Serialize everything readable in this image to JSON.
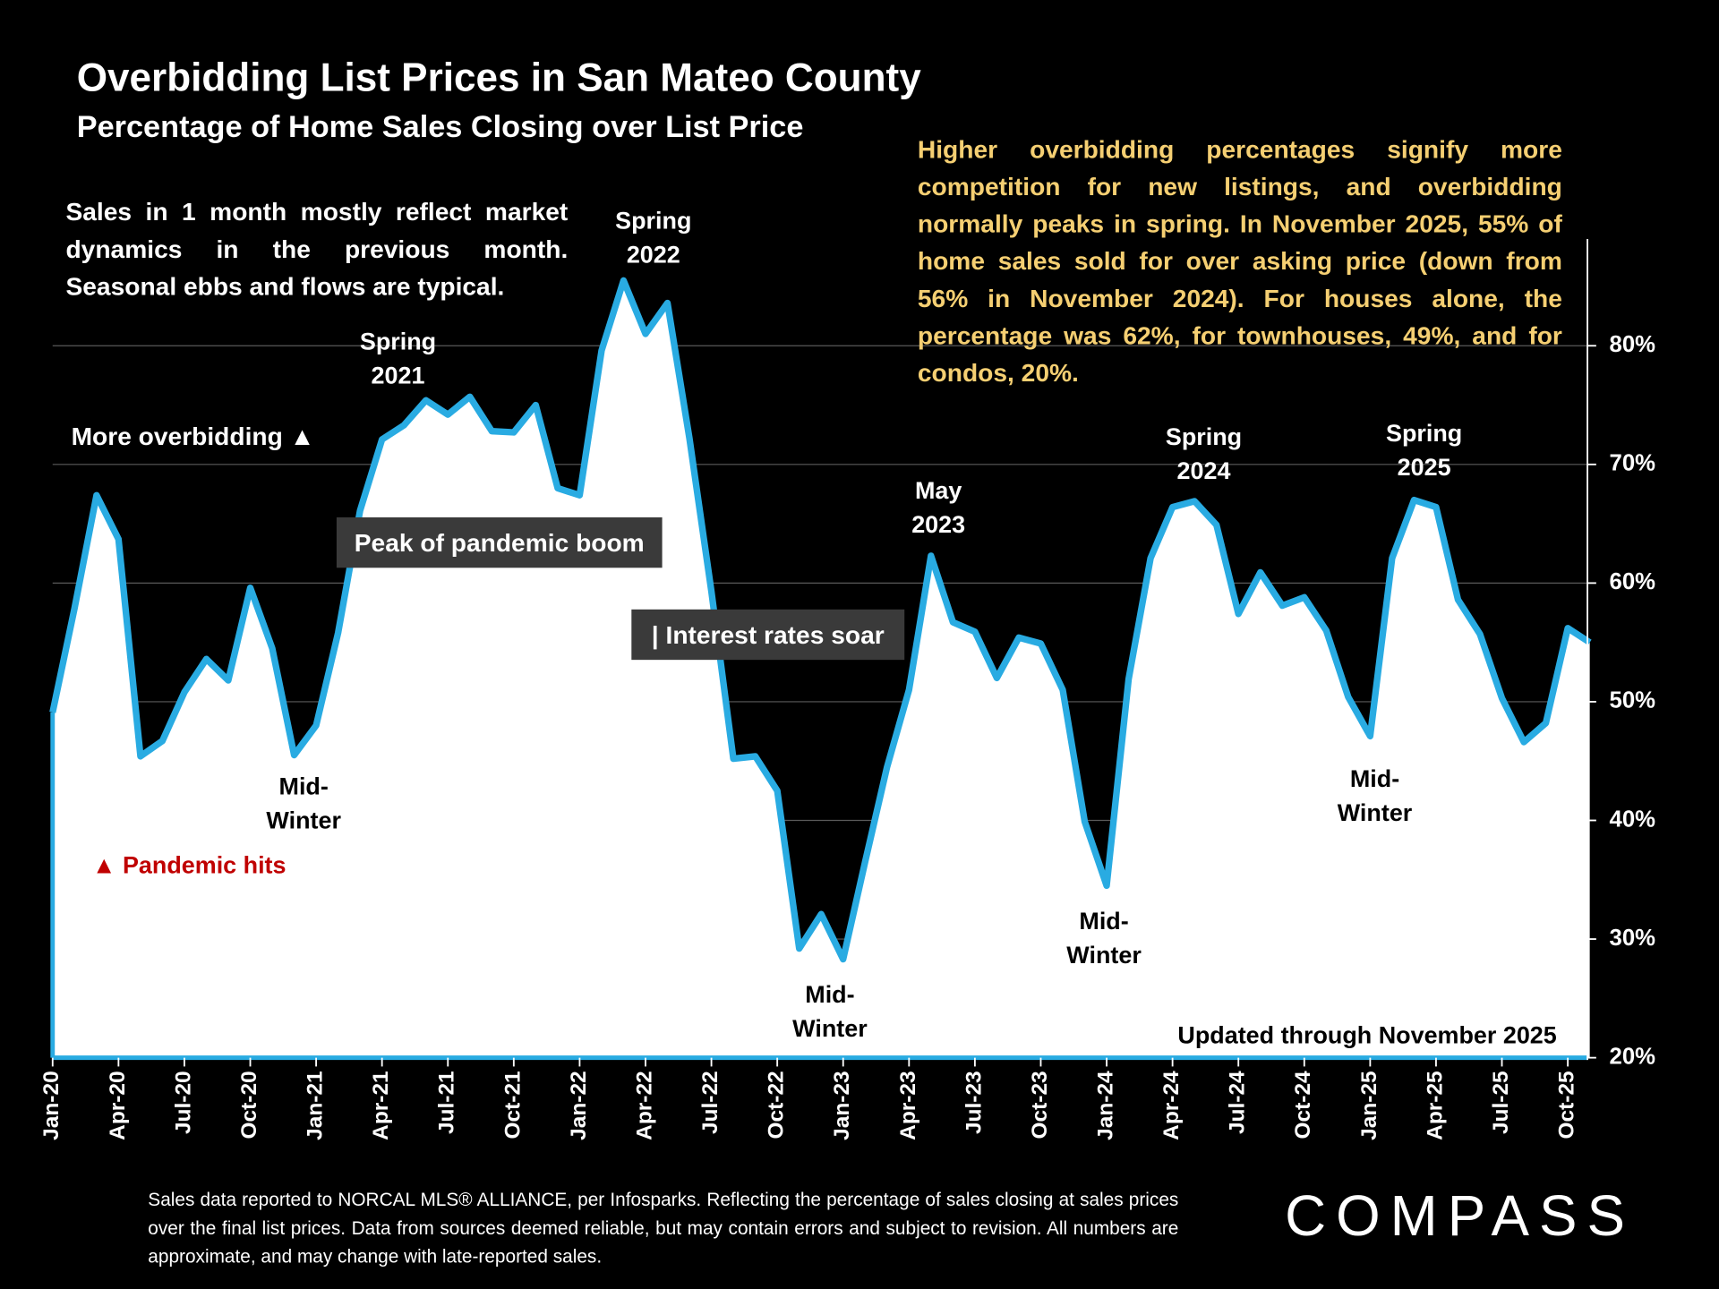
{
  "title": "Overbidding List Prices in San Mateo County",
  "subtitle": "Percentage of Home Sales Closing over List Price",
  "note": "Sales in 1 month mostly reflect market dynamics in the previous month. Seasonal ebbs and flows are typical.",
  "insight": "Higher overbidding percentages signify more competition for new listings, and overbidding normally peaks in spring. In November 2025, 55% of home sales sold for over asking price (down from 56% in November 2024). For houses alone, the percentage was 62%, for townhouses, 49%, and for condos, 20%.",
  "footer": "Sales data reported to NORCAL MLS® ALLIANCE, per Infosparks. Reflecting the percentage of sales closing at sales prices over the final list prices. Data from sources deemed reliable, but may contain errors and subject to revision. All numbers are approximate, and may change with late-reported sales.",
  "logo": "COMPASS",
  "chart_data": {
    "type": "area",
    "categories": [
      "Jan-20",
      null,
      null,
      "Apr-20",
      null,
      null,
      "Jul-20",
      null,
      null,
      "Oct-20",
      null,
      null,
      "Jan-21",
      null,
      null,
      "Apr-21",
      null,
      null,
      "Jul-21",
      null,
      null,
      "Oct-21",
      null,
      null,
      "Jan-22",
      null,
      null,
      "Apr-22",
      null,
      null,
      "Jul-22",
      null,
      null,
      "Oct-22",
      null,
      null,
      "Jan-23",
      null,
      null,
      "Apr-23",
      null,
      null,
      "Jul-23",
      null,
      null,
      "Oct-23",
      null,
      null,
      "Jan-24",
      null,
      null,
      "Apr-24",
      null,
      null,
      "Jul-24",
      null,
      null,
      "Oct-24",
      null,
      null,
      "Jan-25",
      null,
      null,
      "Apr-25",
      null,
      null,
      "Jul-25",
      null,
      null,
      "Oct-25",
      null
    ],
    "values": [
      49.1,
      57.9,
      67.4,
      63.7,
      45.4,
      46.7,
      50.8,
      53.6,
      51.8,
      59.6,
      54.5,
      45.5,
      48.0,
      55.8,
      66.1,
      72.1,
      73.3,
      75.4,
      74.2,
      75.7,
      72.8,
      72.7,
      75.0,
      68.0,
      67.4,
      79.6,
      85.5,
      81.0,
      83.6,
      72.2,
      59.3,
      45.2,
      45.4,
      42.5,
      29.2,
      32.1,
      28.3,
      36.5,
      44.5,
      51.0,
      62.3,
      56.7,
      55.9,
      52.0,
      55.4,
      54.9,
      51.0,
      39.9,
      34.5,
      51.9,
      62.1,
      66.4,
      66.9,
      64.9,
      57.4,
      60.9,
      58.1,
      58.8,
      56.0,
      50.4,
      47.1,
      62.1,
      67.0,
      66.4,
      58.6,
      55.7,
      50.3,
      46.6,
      48.2,
      56.2,
      55.0
    ],
    "color": "#29abe2",
    "fill": "#ffffff",
    "ylim": [
      20,
      89
    ],
    "yticks": [
      {
        "value": 20,
        "label": "20%"
      },
      {
        "value": 30,
        "label": "30%"
      },
      {
        "value": 40,
        "label": "40%"
      },
      {
        "value": 50,
        "label": "50%"
      },
      {
        "value": 60,
        "label": "60%"
      },
      {
        "value": 70,
        "label": "70%"
      },
      {
        "value": 80,
        "label": "80%"
      }
    ],
    "grid": true,
    "annotations": [
      [
        "Spring",
        "2021"
      ],
      [
        "Spring",
        "2022"
      ],
      [
        "May",
        "2023"
      ],
      [
        "Spring",
        "2024"
      ],
      [
        "Spring",
        "2025"
      ],
      [
        "Mid-",
        "Winter"
      ],
      [
        "Mid-",
        "Winter"
      ],
      [
        "Mid-",
        "Winter"
      ],
      [
        "Mid-",
        "Winter"
      ]
    ],
    "more_label": "More overbidding ▲",
    "pandemic_label": "▲ Pandemic hits",
    "peak_box": "Peak of pandemic boom",
    "rates_box": "| Interest rates soar",
    "updated": "Updated through November 2025"
  }
}
